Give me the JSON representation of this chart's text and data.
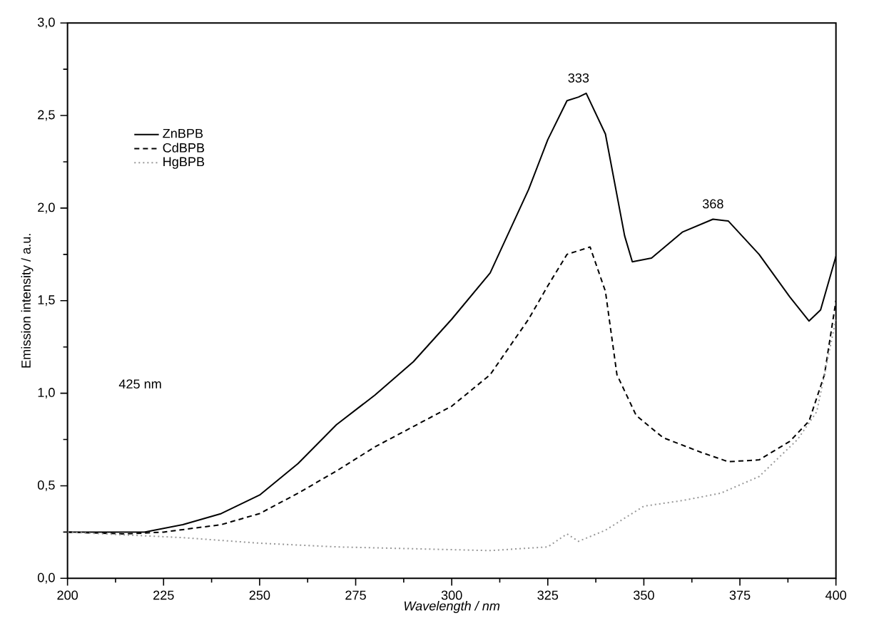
{
  "chart_data": {
    "type": "line",
    "xlabel": "*Wavelength / nm*",
    "ylabel": "Emission intensity / a.u.",
    "xlim": [
      200,
      400
    ],
    "ylim": [
      0,
      3
    ],
    "xticks": [
      200,
      225,
      250,
      275,
      300,
      325,
      350,
      375,
      400
    ],
    "yticks": [
      {
        "value": 0,
        "label": "0,0"
      },
      {
        "value": 0.5,
        "label": "0,5"
      },
      {
        "value": 1,
        "label": "1,0"
      },
      {
        "value": 1.5,
        "label": "1,5"
      },
      {
        "value": 2,
        "label": "2,0"
      },
      {
        "value": 2.5,
        "label": "2,5"
      },
      {
        "value": 3,
        "label": "3,0"
      }
    ],
    "legend": "top left",
    "grid": false,
    "series": [
      {
        "name": "ZnBPB",
        "color": "#000000",
        "line_style": "solid",
        "x": [
          200,
          210,
          220,
          230,
          240,
          250,
          260,
          270,
          280,
          290,
          300,
          310,
          320,
          325,
          330,
          333,
          335,
          340,
          345,
          347,
          352,
          360,
          368,
          372,
          380,
          388,
          393,
          396,
          400
        ],
        "values": [
          0.25,
          0.25,
          0.25,
          0.29,
          0.35,
          0.45,
          0.62,
          0.83,
          0.99,
          1.17,
          1.4,
          1.65,
          2.1,
          2.37,
          2.58,
          2.6,
          2.62,
          2.4,
          1.85,
          1.71,
          1.73,
          1.87,
          1.94,
          1.93,
          1.75,
          1.52,
          1.39,
          1.45,
          1.74
        ]
      },
      {
        "name": "CdBPB",
        "color": "#000000",
        "line_style": "dashed",
        "x": [
          200,
          215,
          225,
          240,
          250,
          260,
          270,
          280,
          290,
          300,
          310,
          320,
          325,
          330,
          336,
          340,
          343,
          348,
          355,
          365,
          372,
          380,
          388,
          393,
          397,
          400
        ],
        "values": [
          0.25,
          0.24,
          0.25,
          0.29,
          0.35,
          0.46,
          0.58,
          0.71,
          0.82,
          0.93,
          1.1,
          1.4,
          1.58,
          1.75,
          1.79,
          1.55,
          1.1,
          0.88,
          0.76,
          0.68,
          0.63,
          0.64,
          0.74,
          0.85,
          1.1,
          1.5
        ]
      },
      {
        "name": "HgBPB",
        "color": "#999999",
        "line_style": "dotted",
        "x": [
          200,
          230,
          250,
          270,
          290,
          310,
          325,
          330,
          333,
          340,
          350,
          360,
          370,
          380,
          390,
          395,
          400
        ],
        "values": [
          0.25,
          0.22,
          0.19,
          0.17,
          0.16,
          0.15,
          0.17,
          0.24,
          0.2,
          0.26,
          0.39,
          0.42,
          0.46,
          0.55,
          0.75,
          0.9,
          1.4
        ]
      }
    ],
    "annotations": [
      {
        "text": "333",
        "x": 333,
        "y": 2.62
      },
      {
        "text": "368",
        "x": 368,
        "y": 1.94
      },
      "425 nm"
    ]
  }
}
